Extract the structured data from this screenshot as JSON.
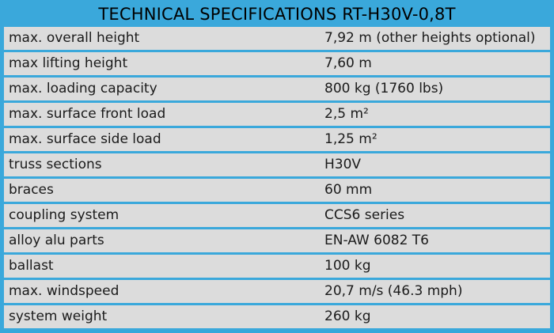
{
  "title": "TECHNICAL SPECIFICATIONS RT-H30V-0,8T",
  "rows": [
    {
      "label": "max. overall height",
      "value": "7,92 m (other heights optional)"
    },
    {
      "label": "max lifting height",
      "value": "7,60 m"
    },
    {
      "label": "max. loading capacity",
      "value": "800 kg (1760 lbs)"
    },
    {
      "label": "max. surface front load",
      "value": "2,5 m²"
    },
    {
      "label": "max. surface side load",
      "value": "1,25 m²"
    },
    {
      "label": "truss sections",
      "value": "H30V"
    },
    {
      "label": "braces",
      "value": "60 mm"
    },
    {
      "label": "coupling system",
      "value": "CCS6 series"
    },
    {
      "label": "alloy alu parts",
      "value": "EN-AW 6082 T6"
    },
    {
      "label": "ballast",
      "value": "100 kg"
    },
    {
      "label": "max. windspeed",
      "value": "20,7 m/s (46.3 mph)"
    },
    {
      "label": "system weight",
      "value": "260 kg"
    }
  ]
}
